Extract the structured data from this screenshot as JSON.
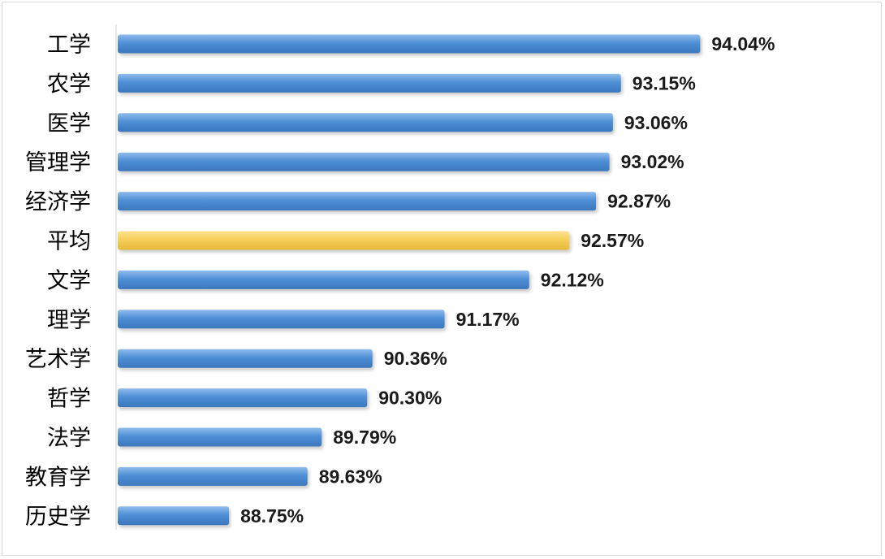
{
  "chart_data": {
    "type": "bar",
    "orientation": "horizontal",
    "title": "",
    "xlabel": "",
    "ylabel": "",
    "categories": [
      "工学",
      "农学",
      "医学",
      "管理学",
      "经济学",
      "平均",
      "文学",
      "理学",
      "艺术学",
      "哲学",
      "法学",
      "教育学",
      "历史学"
    ],
    "values": [
      94.04,
      93.15,
      93.06,
      93.02,
      92.87,
      92.57,
      92.12,
      91.17,
      90.36,
      90.3,
      89.79,
      89.63,
      88.75
    ],
    "value_labels": [
      "94.04%",
      "93.15%",
      "93.06%",
      "93.02%",
      "92.87%",
      "92.57%",
      "92.12%",
      "91.17%",
      "90.36%",
      "90.30%",
      "89.79%",
      "89.63%",
      "88.75%"
    ],
    "unit": "%",
    "xlim": [
      87.5,
      94.2
    ],
    "grid": false,
    "legend": "none",
    "colors": {
      "default_bar": "#4f8fd6",
      "highlight_bar": "#f7cf5a"
    },
    "highlight_category": "平均"
  }
}
